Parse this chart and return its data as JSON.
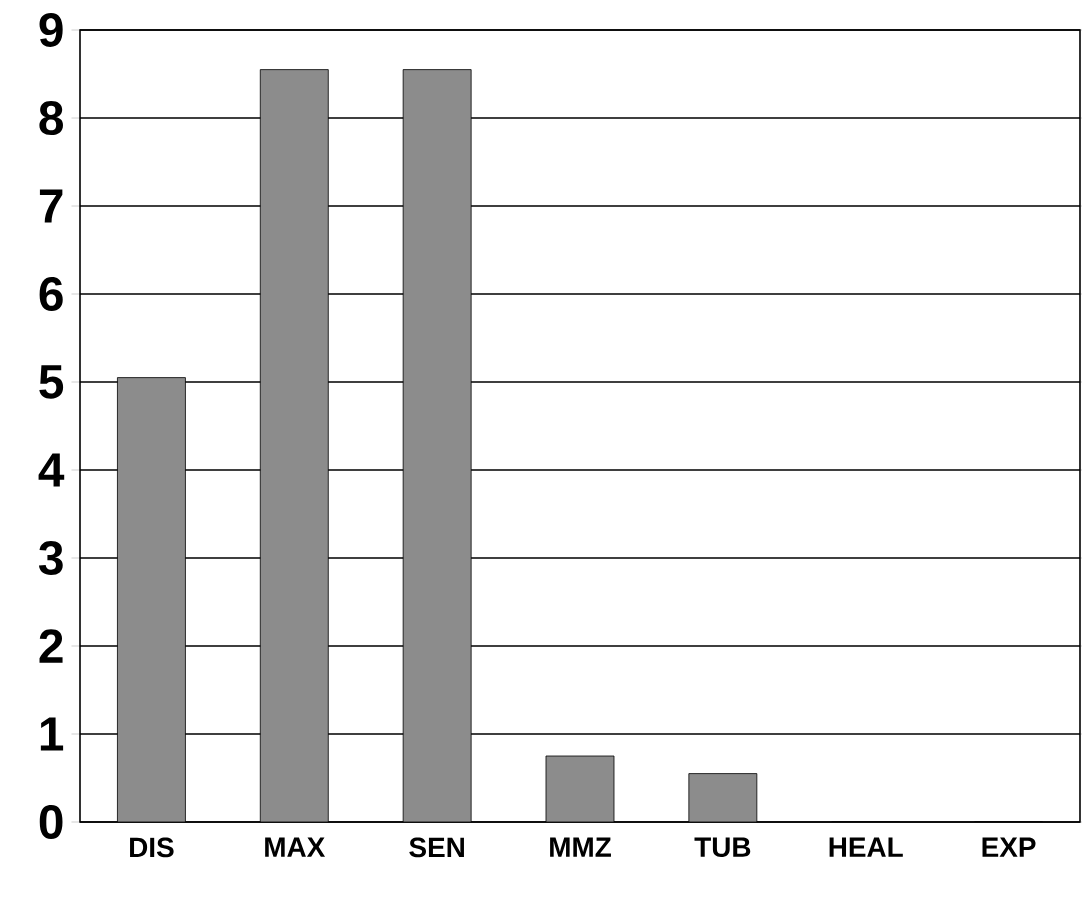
{
  "chart_data": {
    "type": "bar",
    "categories": [
      "DIS",
      "MAX",
      "SEN",
      "MMZ",
      "TUB",
      "HEAL",
      "EXP"
    ],
    "values": [
      5.05,
      8.55,
      8.55,
      0.75,
      0.55,
      0,
      0
    ],
    "color": "#8c8c8c",
    "ylim": [
      0,
      9
    ],
    "yticks": [
      0,
      1,
      2,
      3,
      4,
      5,
      6,
      7,
      8,
      9
    ],
    "grid": "y"
  }
}
